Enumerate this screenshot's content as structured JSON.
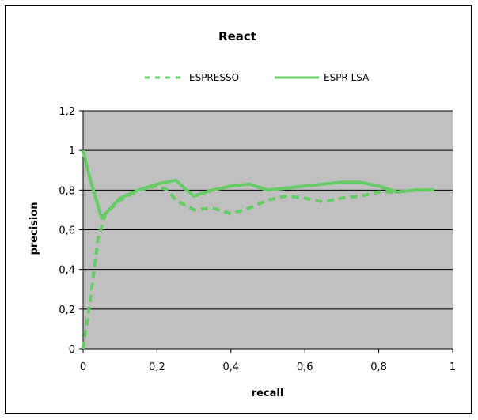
{
  "chart_data": {
    "type": "line",
    "title": "React",
    "xlabel": "recall",
    "ylabel": "precision",
    "xlim": [
      0,
      1
    ],
    "ylim": [
      0,
      1.2
    ],
    "xticks": [
      "0",
      "0,2",
      "0,4",
      "0,6",
      "0,8",
      "1"
    ],
    "yticks": [
      "0",
      "0,2",
      "0,4",
      "0,6",
      "0,8",
      "1",
      "1,2"
    ],
    "grid": "horizontal",
    "legend_position": "top",
    "plot_background": "#c0c0c0",
    "series": [
      {
        "name": "ESPRESSO",
        "style": "dashed",
        "color": "#66cc66",
        "points": [
          [
            0.0,
            0.0
          ],
          [
            0.02,
            0.25
          ],
          [
            0.04,
            0.55
          ],
          [
            0.06,
            0.68
          ],
          [
            0.1,
            0.75
          ],
          [
            0.15,
            0.8
          ],
          [
            0.2,
            0.82
          ],
          [
            0.23,
            0.8
          ],
          [
            0.25,
            0.75
          ],
          [
            0.3,
            0.7
          ],
          [
            0.35,
            0.71
          ],
          [
            0.4,
            0.68
          ],
          [
            0.45,
            0.71
          ],
          [
            0.5,
            0.75
          ],
          [
            0.55,
            0.77
          ],
          [
            0.6,
            0.76
          ],
          [
            0.65,
            0.74
          ],
          [
            0.7,
            0.76
          ],
          [
            0.75,
            0.77
          ],
          [
            0.8,
            0.79
          ],
          [
            0.85,
            0.79
          ],
          [
            0.9,
            0.8
          ],
          [
            0.95,
            0.8
          ]
        ]
      },
      {
        "name": "ESPR LSA",
        "style": "solid",
        "color": "#66cc66",
        "points": [
          [
            0.0,
            1.0
          ],
          [
            0.02,
            0.85
          ],
          [
            0.05,
            0.66
          ],
          [
            0.07,
            0.7
          ],
          [
            0.1,
            0.76
          ],
          [
            0.15,
            0.8
          ],
          [
            0.2,
            0.83
          ],
          [
            0.25,
            0.85
          ],
          [
            0.28,
            0.8
          ],
          [
            0.3,
            0.77
          ],
          [
            0.35,
            0.8
          ],
          [
            0.4,
            0.82
          ],
          [
            0.45,
            0.83
          ],
          [
            0.5,
            0.8
          ],
          [
            0.55,
            0.81
          ],
          [
            0.6,
            0.82
          ],
          [
            0.65,
            0.83
          ],
          [
            0.7,
            0.84
          ],
          [
            0.75,
            0.84
          ],
          [
            0.8,
            0.82
          ],
          [
            0.85,
            0.79
          ],
          [
            0.9,
            0.8
          ],
          [
            0.95,
            0.8
          ]
        ]
      }
    ]
  }
}
